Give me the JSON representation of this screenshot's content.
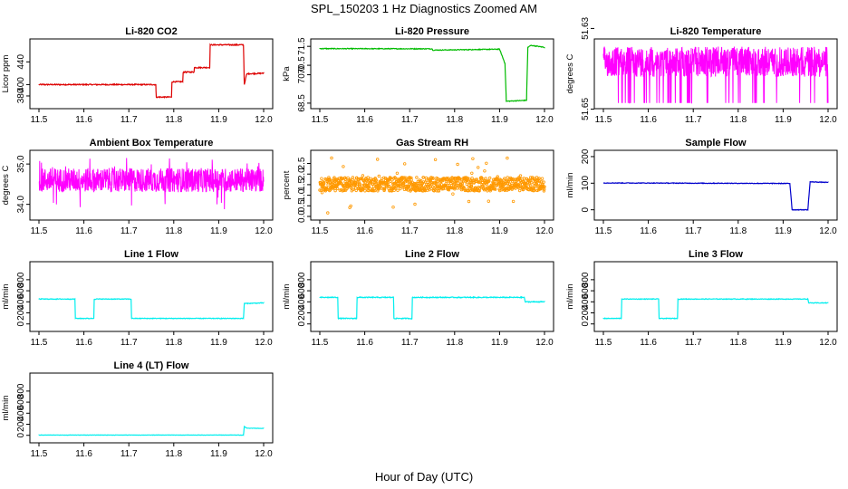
{
  "figure": {
    "title": "SPL_150203  1 Hz Diagnostics Zoomed AM",
    "xlabel": "Hour of Day (UTC)"
  },
  "chart_data": [
    {
      "type": "line",
      "title": "Li-820 CO2",
      "ylabel": "Licor ppm",
      "color": "#dd0000",
      "xlim": [
        11.5,
        12.0
      ],
      "ylim": [
        364,
        474
      ],
      "x_ticks": [
        "11.5",
        "11.6",
        "11.7",
        "11.8",
        "11.9",
        "12.0"
      ],
      "y_ticks": [
        "380",
        "400",
        "440"
      ],
      "x_ticks_values": [
        11.5,
        11.6,
        11.7,
        11.8,
        11.9,
        12.0
      ],
      "y_ticks_values": [
        380,
        400,
        440
      ],
      "noise": 1.0,
      "x": [
        11.5,
        11.76,
        11.761,
        11.795,
        11.796,
        11.82,
        11.821,
        11.845,
        11.846,
        11.88,
        11.881,
        11.955,
        11.957,
        11.962,
        11.964,
        12.0
      ],
      "y": [
        400,
        400,
        378,
        378,
        405,
        405,
        422,
        422,
        430,
        430,
        470,
        470,
        400,
        418,
        419,
        420
      ]
    },
    {
      "type": "line",
      "title": "Li-820 Pressure",
      "ylabel": "kPa",
      "color": "#00bb00",
      "xlim": [
        11.5,
        12.0
      ],
      "ylim": [
        68.4,
        71.7
      ],
      "x_ticks": [
        "11.5",
        "11.6",
        "11.7",
        "11.8",
        "11.9",
        "12.0"
      ],
      "y_ticks": [
        "68.5",
        "70.0",
        "70.5",
        "71.5"
      ],
      "x_ticks_values": [
        11.5,
        11.6,
        11.7,
        11.8,
        11.9,
        12.0
      ],
      "y_ticks_values": [
        68.5,
        70.0,
        70.5,
        71.5
      ],
      "noise": 0.02,
      "x": [
        11.5,
        11.75,
        11.751,
        11.84,
        11.9,
        11.912,
        11.915,
        11.96,
        11.963,
        11.97,
        12.0
      ],
      "y": [
        71.38,
        71.37,
        71.3,
        71.33,
        71.35,
        70.6,
        68.6,
        68.65,
        71.45,
        71.55,
        71.45
      ]
    },
    {
      "type": "line",
      "title": "Li-820 Temperature",
      "ylabel": "degrees C",
      "color": "#ff00ff",
      "xlim": [
        11.5,
        12.0
      ],
      "ylim": [
        51.649,
        51.6335
      ],
      "x_ticks": [
        "11.5",
        "11.6",
        "11.7",
        "11.8",
        "11.9",
        "12.0"
      ],
      "y_ticks": [
        "51.65",
        "51.63"
      ],
      "x_ticks_values": [
        11.5,
        11.6,
        11.7,
        11.8,
        11.9,
        12.0
      ],
      "y_ticks_values": [
        51.65,
        51.63
      ],
      "band": [
        51.6345,
        51.642
      ],
      "spikes_to": 51.6485,
      "spike_count": 40
    },
    {
      "type": "line",
      "title": "Ambient Box Temperature",
      "ylabel": "degrees C",
      "color": "#ff00ff",
      "xlim": [
        11.5,
        12.0
      ],
      "ylim": [
        33.7,
        35.25
      ],
      "x_ticks": [
        "11.5",
        "11.6",
        "11.7",
        "11.8",
        "11.9",
        "12.0"
      ],
      "y_ticks": [
        "34.0",
        "35.0"
      ],
      "x_ticks_values": [
        11.5,
        11.6,
        11.7,
        11.8,
        11.9,
        12.0
      ],
      "y_ticks_values": [
        34.0,
        35.0
      ],
      "band": [
        34.3,
        34.9
      ],
      "extremes": [
        33.85,
        35.15
      ]
    },
    {
      "type": "scatter",
      "title": "Gas Stream RH",
      "ylabel": "percent",
      "color": "#ff9900",
      "xlim": [
        11.5,
        12.0
      ],
      "ylim": [
        0.0,
        2.95
      ],
      "x_ticks": [
        "11.5",
        "11.6",
        "11.7",
        "11.8",
        "11.9",
        "12.0"
      ],
      "y_ticks": [
        "0.0",
        "0.5",
        "1.0",
        "1.5",
        "2.0",
        "2.5"
      ],
      "x_ticks_values": [
        11.5,
        11.6,
        11.7,
        11.8,
        11.9,
        12.0
      ],
      "y_ticks_values": [
        0.0,
        0.5,
        1.0,
        1.5,
        2.0,
        2.5
      ],
      "band": [
        1.2,
        1.85
      ],
      "extremes": [
        0.05,
        2.8
      ]
    },
    {
      "type": "line",
      "title": "Sample Flow",
      "ylabel": "ml/min",
      "color": "#0000cc",
      "xlim": [
        11.5,
        12.0
      ],
      "ylim": [
        -25,
        210
      ],
      "x_ticks": [
        "11.5",
        "11.6",
        "11.7",
        "11.8",
        "11.9",
        "12.0"
      ],
      "y_ticks": [
        "0",
        "100",
        "200"
      ],
      "x_ticks_values": [
        11.5,
        11.6,
        11.7,
        11.8,
        11.9,
        12.0
      ],
      "y_ticks_values": [
        0,
        100,
        200
      ],
      "noise": 1.2,
      "x": [
        11.5,
        11.915,
        11.92,
        11.955,
        11.96,
        12.0
      ],
      "y": [
        101,
        99,
        0,
        0,
        105,
        103
      ]
    },
    {
      "type": "line",
      "title": "Line 1 Flow",
      "ylabel": "ml/min",
      "color": "#00eeee",
      "xlim": [
        11.5,
        12.0
      ],
      "ylim": [
        -70,
        1060
      ],
      "x_ticks": [
        "11.5",
        "11.6",
        "11.7",
        "11.8",
        "11.9",
        "12.0"
      ],
      "y_ticks": [
        "0",
        "200",
        "400",
        "600",
        "800"
      ],
      "x_ticks_values": [
        11.5,
        11.6,
        11.7,
        11.8,
        11.9,
        12.0
      ],
      "y_ticks_values": [
        0,
        200,
        400,
        600,
        800
      ],
      "noise": 6,
      "x": [
        11.5,
        11.58,
        11.581,
        11.622,
        11.623,
        11.705,
        11.706,
        11.955,
        11.957,
        12.0
      ],
      "y": [
        450,
        450,
        100,
        100,
        450,
        450,
        100,
        100,
        370,
        380
      ]
    },
    {
      "type": "line",
      "title": "Line 2 Flow",
      "ylabel": "ml/min",
      "color": "#00eeee",
      "xlim": [
        11.5,
        12.0
      ],
      "ylim": [
        -70,
        1060
      ],
      "x_ticks": [
        "11.5",
        "11.6",
        "11.7",
        "11.8",
        "11.9",
        "12.0"
      ],
      "y_ticks": [
        "0",
        "200",
        "400",
        "600",
        "800"
      ],
      "x_ticks_values": [
        11.5,
        11.6,
        11.7,
        11.8,
        11.9,
        12.0
      ],
      "y_ticks_values": [
        0,
        200,
        400,
        600,
        800
      ],
      "noise": 8,
      "x": [
        11.5,
        11.54,
        11.541,
        11.582,
        11.583,
        11.664,
        11.665,
        11.705,
        11.706,
        11.955,
        11.957,
        12.0
      ],
      "y": [
        480,
        480,
        100,
        100,
        480,
        480,
        100,
        100,
        480,
        480,
        400,
        400
      ]
    },
    {
      "type": "line",
      "title": "Line 3 Flow",
      "ylabel": "ml/min",
      "color": "#00eeee",
      "xlim": [
        11.5,
        12.0
      ],
      "ylim": [
        -70,
        1060
      ],
      "x_ticks": [
        "11.5",
        "11.6",
        "11.7",
        "11.8",
        "11.9",
        "12.0"
      ],
      "y_ticks": [
        "0",
        "200",
        "400",
        "600",
        "800"
      ],
      "x_ticks_values": [
        11.5,
        11.6,
        11.7,
        11.8,
        11.9,
        12.0
      ],
      "y_ticks_values": [
        0,
        200,
        400,
        600,
        800
      ],
      "noise": 6,
      "x": [
        11.5,
        11.54,
        11.541,
        11.623,
        11.624,
        11.665,
        11.666,
        11.955,
        11.957,
        12.0
      ],
      "y": [
        100,
        100,
        450,
        450,
        100,
        100,
        450,
        450,
        380,
        380
      ]
    },
    {
      "type": "line",
      "title": "Line 4 (LT) Flow",
      "ylabel": "ml/min",
      "color": "#00eeee",
      "xlim": [
        11.5,
        12.0
      ],
      "ylim": [
        -70,
        1060
      ],
      "x_ticks": [
        "11.5",
        "11.6",
        "11.7",
        "11.8",
        "11.9",
        "12.0"
      ],
      "y_ticks": [
        "0",
        "200",
        "400",
        "600",
        "800"
      ],
      "x_ticks_values": [
        11.5,
        11.6,
        11.7,
        11.8,
        11.9,
        12.0
      ],
      "y_ticks_values": [
        0,
        200,
        400,
        600,
        800
      ],
      "noise": 3,
      "x": [
        11.5,
        11.955,
        11.957,
        11.962,
        12.0
      ],
      "y": [
        5,
        5,
        160,
        130,
        125
      ]
    }
  ]
}
